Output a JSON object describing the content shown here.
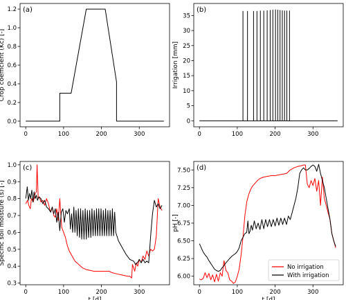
{
  "chart_data": [
    {
      "panel": "(a)",
      "type": "line",
      "title": "",
      "xlabel": "",
      "ylabel": "Crop coefficient (Kᴄ) [-]",
      "xlim": [
        -15,
        380
      ],
      "ylim": [
        -0.06,
        1.26
      ],
      "xticks": [
        0,
        100,
        200,
        300
      ],
      "yticks": [
        0.0,
        0.2,
        0.4,
        0.6,
        0.8,
        1.0,
        1.2
      ],
      "ytick_labels": [
        "0.0",
        "0.2",
        "0.4",
        "0.6",
        "0.8",
        "1.0",
        "1.2"
      ],
      "series": [
        {
          "color": "#000000",
          "x": [
            0,
            90,
            90,
            120,
            160,
            210,
            240,
            240,
            365
          ],
          "y": [
            0,
            0,
            0.3,
            0.3,
            1.2,
            1.2,
            0.42,
            0,
            0
          ]
        }
      ]
    },
    {
      "panel": "(b)",
      "type": "line",
      "title": "",
      "xlabel": "",
      "ylabel": "Irrigation [mm]",
      "xlim": [
        -15,
        380
      ],
      "ylim": [
        -2,
        39
      ],
      "xticks": [
        0,
        100,
        200,
        300
      ],
      "yticks": [
        0,
        5,
        10,
        15,
        20,
        25,
        30,
        35
      ],
      "ytick_labels": [
        "0",
        "5",
        "10",
        "15",
        "20",
        "25",
        "30",
        "35"
      ],
      "baseline": {
        "x": [
          0,
          365
        ],
        "y": [
          0,
          0
        ]
      },
      "events": [
        {
          "x": 115,
          "y": 36.5
        },
        {
          "x": 127,
          "y": 36.5
        },
        {
          "x": 143,
          "y": 36.5
        },
        {
          "x": 152,
          "y": 36.5
        },
        {
          "x": 161,
          "y": 36.6
        },
        {
          "x": 170,
          "y": 36.6
        },
        {
          "x": 179,
          "y": 36.7
        },
        {
          "x": 187,
          "y": 36.8
        },
        {
          "x": 194,
          "y": 36.9
        },
        {
          "x": 201,
          "y": 37.0
        },
        {
          "x": 207,
          "y": 36.9
        },
        {
          "x": 213,
          "y": 36.8
        },
        {
          "x": 219,
          "y": 36.7
        },
        {
          "x": 225,
          "y": 36.6
        },
        {
          "x": 231,
          "y": 36.6
        },
        {
          "x": 238,
          "y": 36.6
        }
      ]
    },
    {
      "panel": "(c)",
      "type": "line",
      "title": "",
      "xlabel": "t [d]",
      "ylabel": "Specific soil moisture (s) [-]",
      "xlim": [
        -15,
        380
      ],
      "ylim": [
        0.29,
        1.02
      ],
      "xticks": [
        0,
        100,
        200,
        300
      ],
      "yticks": [
        0.3,
        0.4,
        0.5,
        0.6,
        0.7,
        0.8,
        0.9,
        1.0
      ],
      "ytick_labels": [
        "0.3",
        "0.4",
        "0.5",
        "0.6",
        "0.7",
        "0.8",
        "0.9",
        "1.0"
      ],
      "series": [
        {
          "name": "No irrigation",
          "color": "#ff0000",
          "x": [
            0,
            5,
            8,
            12,
            15,
            20,
            25,
            28,
            30,
            33,
            36,
            40,
            45,
            50,
            55,
            60,
            63,
            66,
            70,
            74,
            78,
            82,
            86,
            90,
            95,
            100,
            105,
            110,
            115,
            120,
            125,
            130,
            140,
            150,
            160,
            170,
            180,
            200,
            220,
            230,
            240,
            250,
            260,
            270,
            275,
            280,
            282,
            285,
            288,
            292,
            296,
            300,
            305,
            310,
            315,
            320,
            325,
            330,
            335,
            340,
            345,
            350,
            355,
            360
          ],
          "y": [
            0.77,
            0.79,
            0.76,
            0.74,
            0.8,
            0.78,
            0.83,
            0.84,
            1.0,
            0.8,
            0.81,
            0.78,
            0.79,
            0.76,
            0.8,
            0.77,
            0.74,
            0.72,
            0.75,
            0.7,
            0.69,
            0.74,
            0.67,
            0.8,
            0.63,
            0.6,
            0.57,
            0.52,
            0.49,
            0.47,
            0.45,
            0.43,
            0.41,
            0.39,
            0.38,
            0.375,
            0.37,
            0.37,
            0.37,
            0.36,
            0.355,
            0.35,
            0.345,
            0.34,
            0.34,
            0.33,
            0.41,
            0.39,
            0.37,
            0.42,
            0.4,
            0.44,
            0.42,
            0.46,
            0.44,
            0.49,
            0.46,
            0.5,
            0.49,
            0.5,
            0.58,
            0.8,
            0.75,
            0.73
          ]
        },
        {
          "name": "",
          "color": "#000000",
          "x": [
            0,
            4,
            7,
            10,
            13,
            16,
            19,
            22,
            25,
            28,
            31,
            35,
            40,
            45,
            50,
            55,
            60,
            63,
            66,
            70,
            74,
            78,
            82,
            86,
            90,
            94,
            98,
            102,
            106,
            110,
            115,
            118,
            121,
            124,
            127,
            130,
            133,
            136,
            139,
            142,
            145,
            148,
            151,
            154,
            157,
            160,
            163,
            166,
            169,
            172,
            175,
            178,
            181,
            184,
            187,
            190,
            193,
            196,
            199,
            202,
            205,
            208,
            211,
            214,
            217,
            220,
            223,
            226,
            229,
            232,
            235,
            238,
            245,
            255,
            265,
            275,
            285,
            290,
            295,
            300,
            305,
            310,
            315,
            320,
            325,
            330,
            335,
            340,
            345,
            350,
            355,
            360
          ],
          "y": [
            0.8,
            0.87,
            0.79,
            0.83,
            0.8,
            0.85,
            0.78,
            0.84,
            0.8,
            0.82,
            0.79,
            0.81,
            0.8,
            0.77,
            0.79,
            0.75,
            0.74,
            0.73,
            0.72,
            0.75,
            0.71,
            0.74,
            0.66,
            0.72,
            0.61,
            0.72,
            0.74,
            0.66,
            0.73,
            0.71,
            0.74,
            0.62,
            0.71,
            0.6,
            0.75,
            0.6,
            0.73,
            0.58,
            0.74,
            0.57,
            0.74,
            0.56,
            0.73,
            0.56,
            0.74,
            0.56,
            0.73,
            0.57,
            0.73,
            0.57,
            0.74,
            0.58,
            0.73,
            0.58,
            0.74,
            0.58,
            0.74,
            0.58,
            0.74,
            0.58,
            0.73,
            0.58,
            0.74,
            0.58,
            0.73,
            0.58,
            0.73,
            0.58,
            0.74,
            0.58,
            0.72,
            0.6,
            0.55,
            0.51,
            0.47,
            0.44,
            0.43,
            0.41,
            0.42,
            0.44,
            0.42,
            0.44,
            0.42,
            0.43,
            0.42,
            0.58,
            0.71,
            0.79,
            0.75,
            0.77,
            0.74,
            0.76
          ]
        }
      ]
    },
    {
      "panel": "(d)",
      "type": "line",
      "title": "",
      "xlabel": "t [d]",
      "ylabel": "pH [-]",
      "xlim": [
        -15,
        380
      ],
      "ylim": [
        5.88,
        7.62
      ],
      "xticks": [
        0,
        100,
        200,
        300
      ],
      "yticks": [
        6.0,
        6.25,
        6.5,
        6.75,
        7.0,
        7.25,
        7.5
      ],
      "ytick_labels": [
        "6.00",
        "6.25",
        "6.50",
        "6.75",
        "7.00",
        "7.25",
        "7.50"
      ],
      "legend": {
        "position": "lower-right",
        "entries": [
          "No irrigation",
          "With irrigation"
        ]
      },
      "series": [
        {
          "name": "No irrigation",
          "color": "#ff0000",
          "x": [
            0,
            5,
            10,
            15,
            20,
            25,
            30,
            35,
            40,
            45,
            50,
            55,
            60,
            65,
            70,
            75,
            80,
            85,
            90,
            95,
            100,
            105,
            110,
            115,
            120,
            125,
            130,
            135,
            140,
            145,
            150,
            155,
            160,
            170,
            180,
            190,
            200,
            210,
            220,
            230,
            240,
            250,
            260,
            270,
            275,
            280,
            285,
            290,
            295,
            300,
            305,
            310,
            315,
            320,
            325,
            330,
            335,
            340,
            345,
            350,
            355,
            360
          ],
          "y": [
            5.96,
            5.95,
            5.97,
            6.05,
            5.98,
            6.04,
            5.95,
            6.02,
            5.92,
            6.03,
            5.93,
            6.05,
            6.0,
            6.22,
            6.08,
            6.05,
            5.95,
            5.93,
            5.9,
            5.92,
            6.0,
            6.1,
            6.3,
            6.55,
            6.85,
            7.05,
            7.15,
            7.22,
            7.27,
            7.3,
            7.33,
            7.36,
            7.38,
            7.4,
            7.41,
            7.42,
            7.42,
            7.43,
            7.44,
            7.45,
            7.5,
            7.53,
            7.55,
            7.56,
            7.57,
            7.57,
            7.3,
            7.25,
            7.35,
            7.28,
            7.38,
            7.2,
            7.35,
            7.0,
            7.4,
            7.1,
            7.0,
            6.9,
            6.8,
            6.6,
            6.5,
            6.4
          ]
        },
        {
          "name": "With irrigation",
          "color": "#000000",
          "x": [
            0,
            5,
            10,
            15,
            20,
            25,
            30,
            35,
            40,
            45,
            50,
            55,
            60,
            65,
            70,
            75,
            80,
            85,
            90,
            95,
            100,
            105,
            110,
            115,
            120,
            125,
            128,
            131,
            134,
            137,
            140,
            145,
            150,
            155,
            160,
            165,
            170,
            175,
            180,
            185,
            190,
            195,
            200,
            205,
            210,
            215,
            220,
            225,
            230,
            235,
            240,
            245,
            250,
            255,
            260,
            265,
            270,
            275,
            280,
            285,
            290,
            295,
            300,
            305,
            310,
            315,
            320,
            325,
            330,
            335,
            340,
            345,
            350,
            355,
            360
          ],
          "y": [
            6.46,
            6.4,
            6.34,
            6.3,
            6.27,
            6.22,
            6.18,
            6.14,
            6.1,
            6.08,
            6.07,
            6.08,
            6.12,
            6.15,
            6.19,
            6.22,
            6.25,
            6.28,
            6.3,
            6.32,
            6.35,
            6.4,
            6.5,
            6.55,
            6.6,
            6.62,
            6.78,
            6.6,
            6.64,
            6.72,
            6.65,
            6.78,
            6.67,
            6.75,
            6.66,
            6.8,
            6.67,
            6.8,
            6.7,
            6.8,
            6.7,
            6.8,
            6.71,
            6.82,
            6.72,
            6.82,
            6.73,
            6.82,
            6.73,
            6.85,
            6.8,
            6.9,
            7.0,
            7.1,
            7.25,
            7.45,
            7.5,
            7.53,
            7.5,
            7.5,
            7.52,
            7.55,
            7.57,
            7.55,
            7.48,
            7.58,
            7.45,
            7.35,
            7.25,
            7.1,
            6.95,
            6.8,
            6.6,
            6.5,
            6.42
          ]
        }
      ]
    }
  ]
}
